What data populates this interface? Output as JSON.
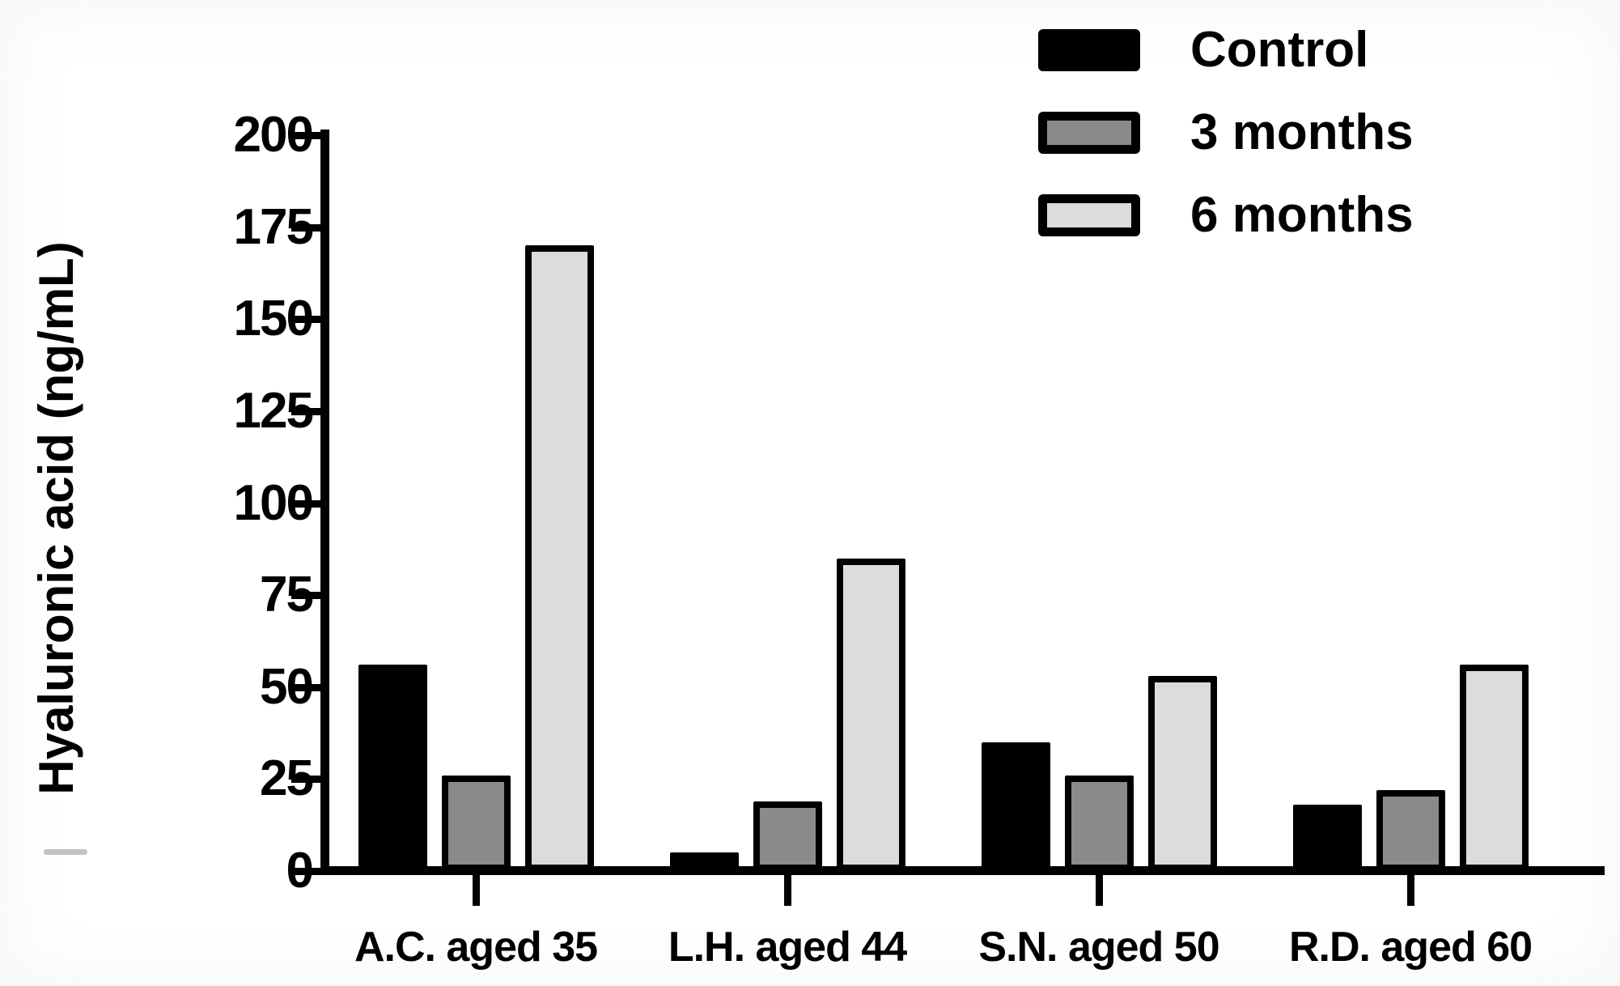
{
  "chart_data": {
    "type": "bar",
    "title": "",
    "ylabel": "Hyaluronic acid (ng/mL)",
    "xlabel": "",
    "ylim": [
      0,
      200
    ],
    "ytick_interval": 25,
    "yticks": [
      200,
      175,
      150,
      125,
      100,
      75,
      50,
      25,
      0
    ],
    "grid": false,
    "legend_position": "top-right",
    "categories": [
      "A.C. aged 35",
      "L.H. aged 44",
      "S.N. aged 50",
      "R.D. aged 60"
    ],
    "series": [
      {
        "name": "Control",
        "fill": "#000000",
        "values": [
          56,
          5,
          35,
          18
        ]
      },
      {
        "name": "3 months",
        "fill": "#8a8a8a",
        "values": [
          26,
          19,
          26,
          22
        ]
      },
      {
        "name": "6 months",
        "fill": "#dcdcdc",
        "values": [
          170,
          85,
          53,
          56
        ]
      }
    ],
    "bar_border_color": "#000000",
    "axis_color": "#000000"
  }
}
